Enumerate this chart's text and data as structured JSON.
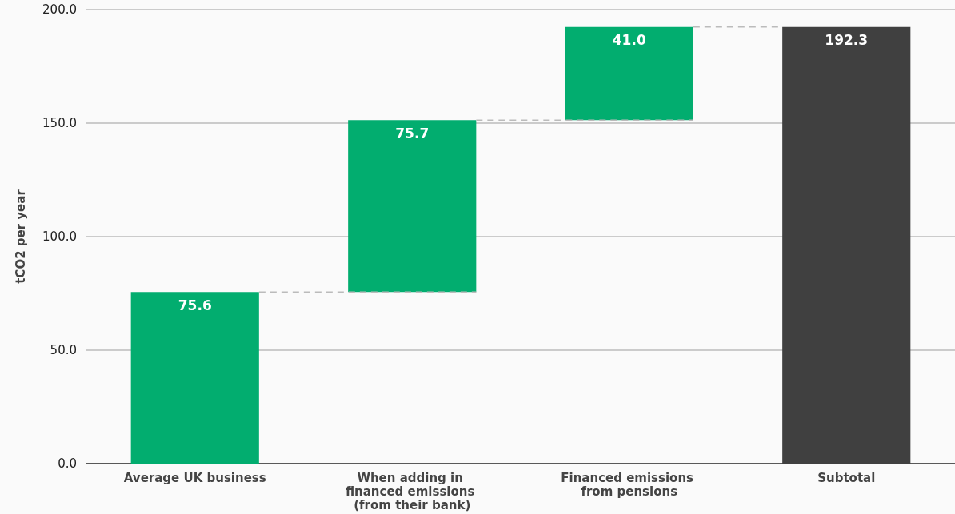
{
  "chart_data": {
    "type": "bar",
    "ylabel": "tCO2 per year",
    "categories": [
      "Average UK business",
      "When adding in financed emissions (from their bank)",
      "Financed emissions from pensions",
      "Subtotal"
    ],
    "values": [
      75.6,
      75.7,
      41.0,
      192.3
    ],
    "base": [
      0,
      75.6,
      151.3,
      0
    ],
    "colors": [
      "#02ad6f",
      "#02ad6f",
      "#02ad6f",
      "#404040"
    ],
    "ylim": [
      0,
      200
    ],
    "yticks": [
      {
        "value": 0,
        "label": "0.0"
      },
      {
        "value": 50,
        "label": "50.0"
      },
      {
        "value": 100,
        "label": "100.0"
      },
      {
        "value": 150,
        "label": "150.0"
      },
      {
        "value": 200,
        "label": "200.0"
      }
    ],
    "value_labels": [
      "75.6",
      "75.7",
      "41.0",
      "192.3"
    ],
    "grid": "y"
  }
}
